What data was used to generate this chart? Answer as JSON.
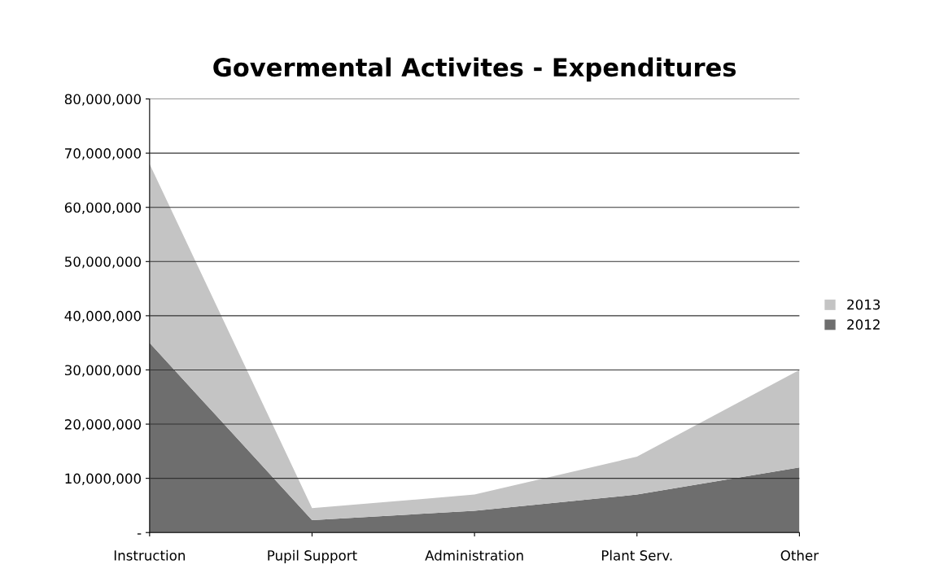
{
  "chart_data": {
    "type": "area",
    "title": "Govermental Activites - Expenditures",
    "stacked": true,
    "categories": [
      "Instruction",
      "Pupil Support",
      "Administration",
      "Plant Serv.",
      "Other"
    ],
    "series": [
      {
        "name": "2012",
        "color": "#6e6e6e",
        "values": [
          35000000,
          2300000,
          4000000,
          7000000,
          12000000
        ]
      },
      {
        "name": "2013",
        "color": "#c4c4c4",
        "values": [
          33000000,
          2200000,
          3000000,
          7000000,
          18000000
        ]
      }
    ],
    "ylim": [
      0,
      80000000
    ],
    "yticks": [
      {
        "value": 0,
        "label": "-"
      },
      {
        "value": 10000000,
        "label": "10,000,000"
      },
      {
        "value": 20000000,
        "label": "20,000,000"
      },
      {
        "value": 30000000,
        "label": "30,000,000"
      },
      {
        "value": 40000000,
        "label": "40,000,000"
      },
      {
        "value": 50000000,
        "label": "50,000,000"
      },
      {
        "value": 60000000,
        "label": "60,000,000"
      },
      {
        "value": 70000000,
        "label": "70,000,000"
      },
      {
        "value": 80000000,
        "label": "80,000,000"
      }
    ],
    "grid": "y",
    "legend": "right"
  }
}
